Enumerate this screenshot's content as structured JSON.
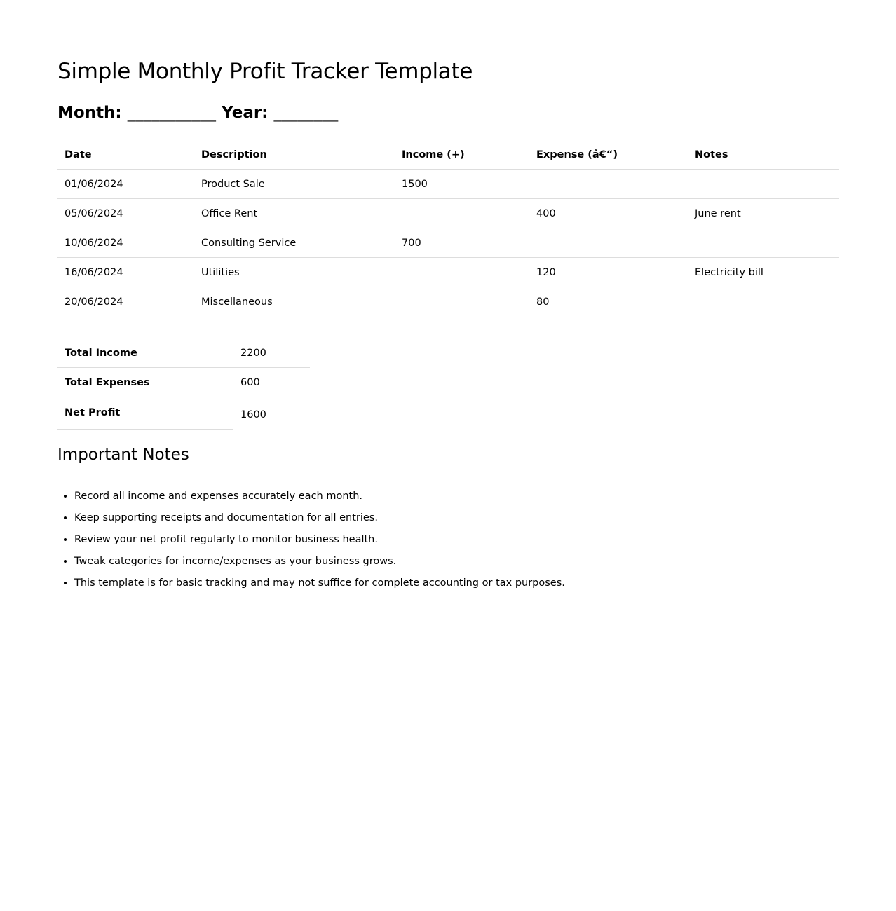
{
  "title": "Simple Monthly Profit Tracker Template",
  "period": {
    "month_label": "Month:",
    "month_value": "___________",
    "year_label": "Year:",
    "year_value": "________"
  },
  "table": {
    "headers": [
      "Date",
      "Description",
      "Income (+)",
      "Expense (â€“)",
      "Notes"
    ],
    "rows": [
      [
        "01/06/2024",
        "Product Sale",
        "1500",
        "",
        ""
      ],
      [
        "05/06/2024",
        "Office Rent",
        "",
        "400",
        "June rent"
      ],
      [
        "10/06/2024",
        "Consulting Service",
        "700",
        "",
        ""
      ],
      [
        "16/06/2024",
        "Utilities",
        "",
        "120",
        "Electricity bill"
      ],
      [
        "20/06/2024",
        "Miscellaneous",
        "",
        "80",
        ""
      ]
    ]
  },
  "summary": [
    {
      "label": "Total Income",
      "value": "2200"
    },
    {
      "label": "Total Expenses",
      "value": "600"
    },
    {
      "label": "Net Profit",
      "value": "1600"
    }
  ],
  "notes": {
    "heading": "Important Notes",
    "items": [
      "Record all income and expenses accurately each month.",
      "Keep supporting receipts and documentation for all entries.",
      "Review your net profit regularly to monitor business health.",
      "Tweak categories for income/expenses as your business grows.",
      "This template is for basic tracking and may not suffice for complete accounting or tax purposes."
    ]
  }
}
